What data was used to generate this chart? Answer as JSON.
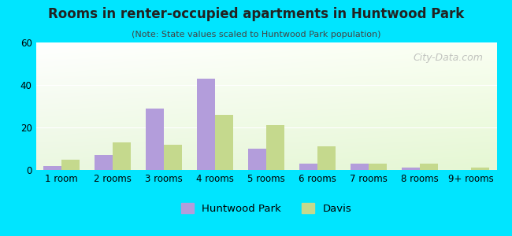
{
  "title": "Rooms in renter-occupied apartments in Huntwood Park",
  "subtitle": "(Note: State values scaled to Huntwood Park population)",
  "categories": [
    "1 room",
    "2 rooms",
    "3 rooms",
    "4 rooms",
    "5 rooms",
    "6 rooms",
    "7 rooms",
    "8 rooms",
    "9+ rooms"
  ],
  "huntwood_park": [
    2,
    7,
    29,
    43,
    10,
    3,
    3,
    1,
    0
  ],
  "davis": [
    5,
    13,
    12,
    26,
    21,
    11,
    3,
    3,
    1
  ],
  "huntwood_color": "#b39ddb",
  "davis_color": "#c5d98d",
  "background_outer": "#00e5ff",
  "ylim": [
    0,
    60
  ],
  "yticks": [
    0,
    20,
    40,
    60
  ],
  "bar_width": 0.35,
  "legend_labels": [
    "Huntwood Park",
    "Davis"
  ],
  "watermark": "City-Data.com"
}
